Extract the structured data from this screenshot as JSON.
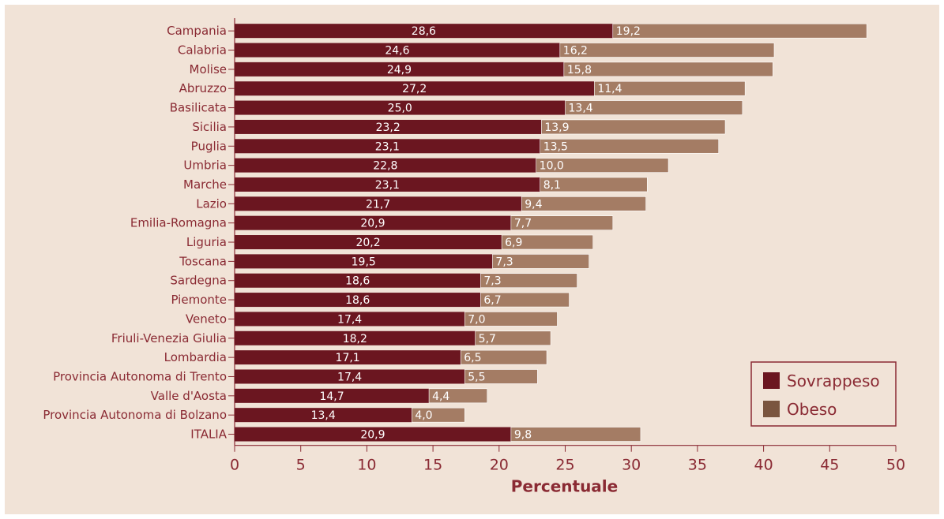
{
  "chart_data": {
    "type": "bar",
    "orientation": "horizontal",
    "stacked": true,
    "categories": [
      "Campania",
      "Calabria",
      "Molise",
      "Abruzzo",
      "Basilicata",
      "Sicilia",
      "Puglia",
      "Umbria",
      "Marche",
      "Lazio",
      "Emilia-Romagna",
      "Liguria",
      "Toscana",
      "Sardegna",
      "Piemonte",
      "Veneto",
      "Friuli-Venezia Giulia",
      "Lombardia",
      "Provincia Autonoma di Trento",
      "Valle d'Aosta",
      "Provincia Autonoma di Bolzano",
      "ITALIA"
    ],
    "series": [
      {
        "name": "Sovrappeso",
        "color": "#6b1620",
        "values": [
          28.6,
          24.6,
          24.9,
          27.2,
          25.0,
          23.2,
          23.1,
          22.8,
          23.1,
          21.7,
          20.9,
          20.2,
          19.5,
          18.6,
          18.6,
          17.4,
          18.2,
          17.1,
          17.4,
          14.7,
          13.4,
          20.9
        ],
        "labels": [
          "28,6",
          "24,6",
          "24,9",
          "27,2",
          "25,0",
          "23,2",
          "23,1",
          "22,8",
          "23,1",
          "21,7",
          "20,9",
          "20,2",
          "19,5",
          "18,6",
          "18,6",
          "17,4",
          "18,2",
          "17,1",
          "17,4",
          "14,7",
          "13,4",
          "20,9"
        ]
      },
      {
        "name": "Obeso",
        "color": "#a47c64",
        "values": [
          19.2,
          16.2,
          15.8,
          11.4,
          13.4,
          13.9,
          13.5,
          10.0,
          8.1,
          9.4,
          7.7,
          6.9,
          7.3,
          7.3,
          6.7,
          7.0,
          5.7,
          6.5,
          5.5,
          4.4,
          4.0,
          9.8
        ],
        "labels": [
          "19,2",
          "16,2",
          "15,8",
          "11,4",
          "13,4",
          "13,9",
          "13,5",
          "10,0",
          "8,1",
          "9,4",
          "7,7",
          "6,9",
          "7,3",
          "7,3",
          "6,7",
          "7,0",
          "5,7",
          "6,5",
          "5,5",
          "4,4",
          "4,0",
          "9,8"
        ]
      }
    ],
    "xlabel": "Percentuale",
    "xlim": [
      0,
      50
    ],
    "xticks": [
      0,
      5,
      10,
      15,
      20,
      25,
      30,
      35,
      40,
      45,
      50
    ],
    "grid": false,
    "legend_position": "bottom-right",
    "legend_swatch_colors": [
      "#6b1620",
      "#7a553f"
    ]
  }
}
